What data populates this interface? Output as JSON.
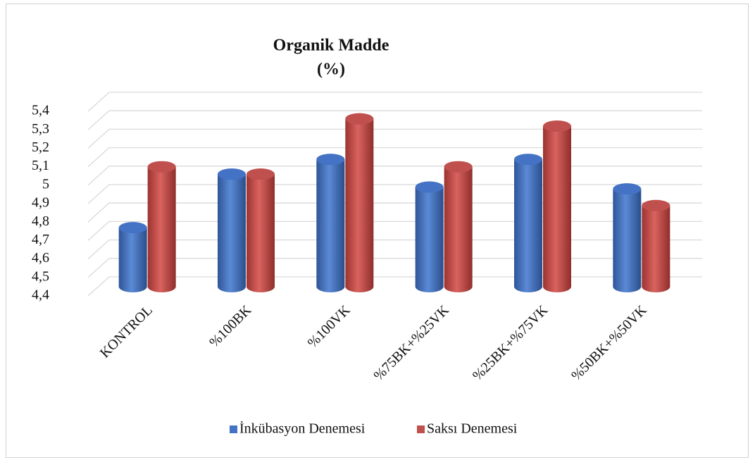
{
  "chart_data": {
    "type": "bar",
    "title": "Organik Madde",
    "subtitle": "(%)",
    "categories": [
      "KONTROL",
      "%100BK",
      "%100VK",
      "%75BK+%25VK",
      "%25BK+%75VK",
      "%50BK+%50VK"
    ],
    "series": [
      {
        "name": "İnkübasyon Denemesi",
        "color": "#4472c4",
        "values": [
          4.72,
          5.01,
          5.09,
          4.94,
          5.09,
          4.93
        ]
      },
      {
        "name": "Saksı Denemesi",
        "color": "#c0504d",
        "values": [
          5.05,
          5.01,
          5.31,
          5.05,
          5.27,
          4.84
        ]
      }
    ],
    "ylim": [
      4.4,
      5.4
    ],
    "yticks": [
      {
        "value": 4.4,
        "label": "4,4"
      },
      {
        "value": 4.5,
        "label": "4,5"
      },
      {
        "value": 4.6,
        "label": "4,6"
      },
      {
        "value": 4.7,
        "label": "4,7"
      },
      {
        "value": 4.8,
        "label": "4,8"
      },
      {
        "value": 4.9,
        "label": "4,9"
      },
      5,
      {
        "value": 5.1,
        "label": "5,1"
      },
      {
        "value": 5.2,
        "label": "5,2"
      },
      {
        "value": 5.3,
        "label": "5,3"
      },
      {
        "value": 5.4,
        "label": "5,4"
      }
    ],
    "grid": true,
    "legend": "bottom"
  }
}
